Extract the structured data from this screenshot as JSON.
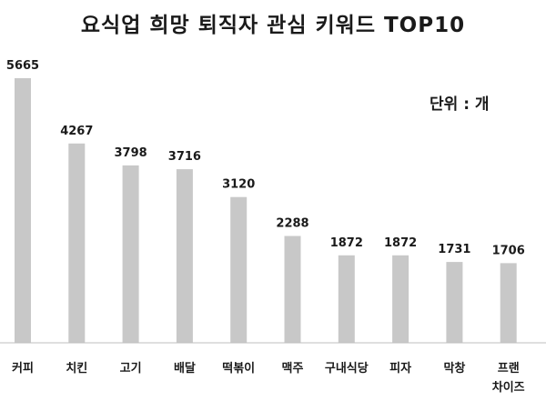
{
  "chart_data": {
    "type": "bar",
    "title": "요식업 희망 퇴직자 관심 키워드 TOP10",
    "unit": "단위 : 개",
    "categories": [
      "커피",
      "치킨",
      "고기",
      "배달",
      "떡볶이",
      "맥주",
      "구내식당",
      "피자",
      "막창",
      "프랜차이즈"
    ],
    "category_lines": [
      [
        "커피"
      ],
      [
        "치킨"
      ],
      [
        "고기"
      ],
      [
        "배달"
      ],
      [
        "떡볶이"
      ],
      [
        "맥주"
      ],
      [
        "구내식당"
      ],
      [
        "피자"
      ],
      [
        "막창"
      ],
      [
        "프랜",
        "차이즈"
      ]
    ],
    "values": [
      5665,
      4267,
      3798,
      3716,
      3120,
      2288,
      1872,
      1872,
      1731,
      1706
    ],
    "value_labels": [
      "5665",
      "4267",
      "3798",
      "3716",
      "3120",
      "2288",
      "1872",
      "1872",
      "1731",
      "1706"
    ],
    "ylim": [
      0,
      5665
    ],
    "bar_color": "#c8c8c8",
    "axis_color": "#bfbfbf",
    "grid": false
  }
}
